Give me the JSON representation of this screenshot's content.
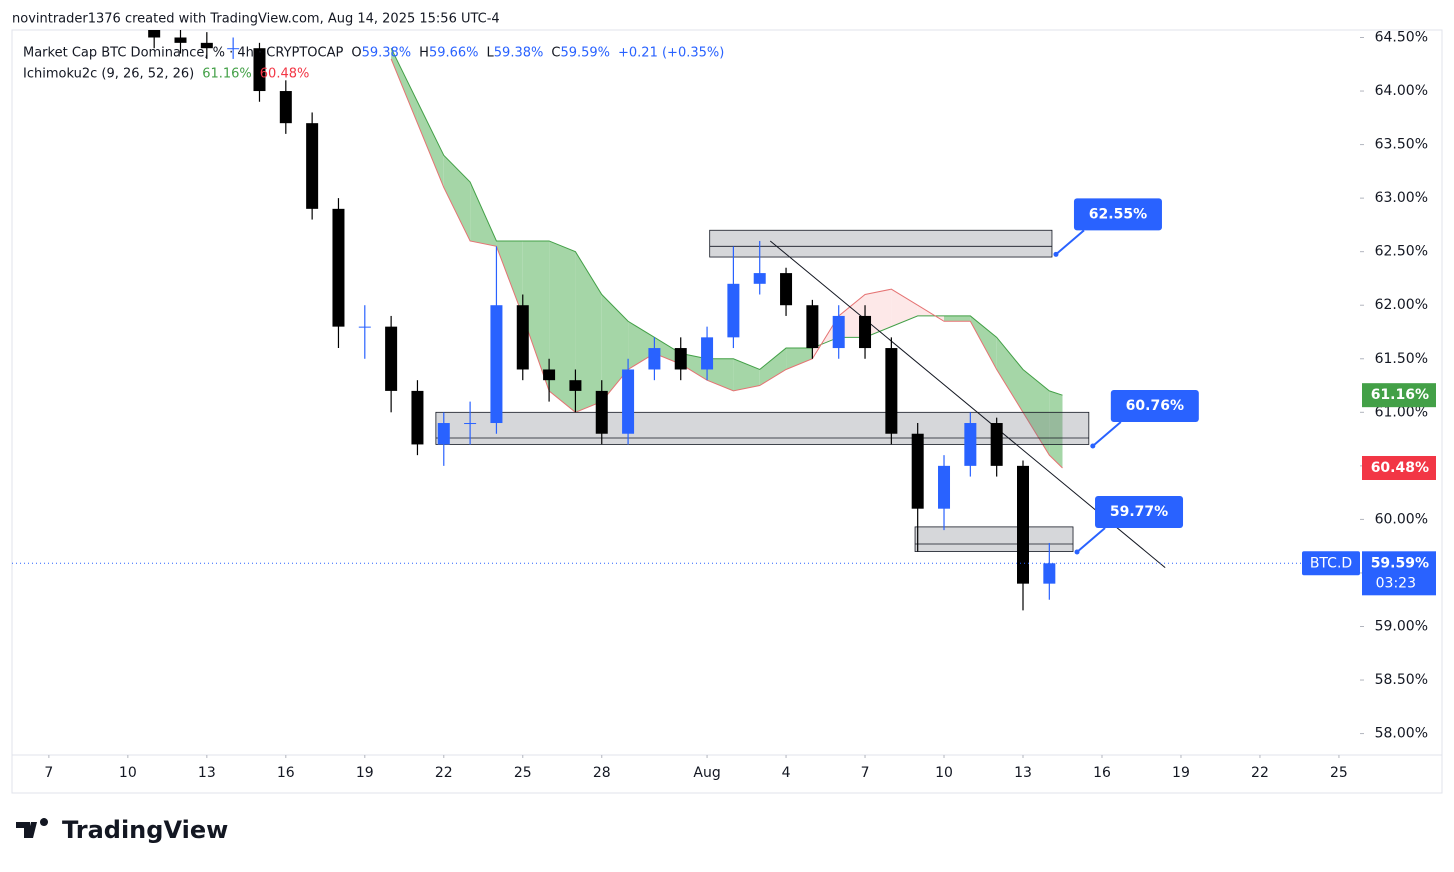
{
  "header": {
    "credit": "novintrader1376 created with TradingView.com, Aug 14, 2025 15:56 UTC-4",
    "logo": "TradingView"
  },
  "chart_data": {
    "type": "candlestick",
    "legend": {
      "symbol": "Market Cap BTC Dominance, % · 4h · CRYPTOCAP",
      "o_key": "O",
      "o": "59.38%",
      "h_key": "H",
      "h": "59.66%",
      "l_key": "L",
      "l": "59.38%",
      "c_key": "C",
      "c": "59.59%",
      "change": "+0.21 (+0.35%)",
      "indicator": "Ichimoku2c (9, 26, 52, 26)",
      "lead_a": "61.16%",
      "lead_b": "60.48%"
    },
    "x": [
      4,
      5,
      6,
      7,
      8,
      9,
      10,
      11,
      12,
      13,
      14,
      15,
      16,
      17,
      18,
      19,
      20,
      21,
      22,
      23,
      24,
      25,
      26,
      27,
      28,
      29,
      30,
      31,
      32,
      33,
      34,
      35,
      36,
      37,
      38
    ],
    "open": [
      64.6,
      64.5,
      64.45,
      64.4,
      64.4,
      64.0,
      63.7,
      62.9,
      61.8,
      61.8,
      61.2,
      60.7,
      60.9,
      60.9,
      62.0,
      61.4,
      61.3,
      61.2,
      60.8,
      61.4,
      61.6,
      61.4,
      61.7,
      62.2,
      62.3,
      62.0,
      61.6,
      61.9,
      61.6,
      60.8,
      60.1,
      60.5,
      60.9,
      60.5,
      59.4
    ],
    "high": [
      64.65,
      64.6,
      64.55,
      64.5,
      64.45,
      64.1,
      63.8,
      63.0,
      62.0,
      61.9,
      61.3,
      61.0,
      61.1,
      62.55,
      62.1,
      61.5,
      61.4,
      61.3,
      61.5,
      61.7,
      61.7,
      61.8,
      62.55,
      62.6,
      62.35,
      62.05,
      62.0,
      62.0,
      61.7,
      60.9,
      60.6,
      61.0,
      60.95,
      60.55,
      59.78
    ],
    "low": [
      64.4,
      64.35,
      64.3,
      64.3,
      63.9,
      63.6,
      62.8,
      61.6,
      61.5,
      61.0,
      60.6,
      60.5,
      60.7,
      60.8,
      61.3,
      61.1,
      61.0,
      60.7,
      60.7,
      61.3,
      61.3,
      61.3,
      61.6,
      62.1,
      61.9,
      61.5,
      61.5,
      61.5,
      60.7,
      59.7,
      59.9,
      60.4,
      60.4,
      59.15,
      59.25
    ],
    "close": [
      64.5,
      64.45,
      64.4,
      64.4,
      64.0,
      63.7,
      62.9,
      61.8,
      61.8,
      61.2,
      60.7,
      60.9,
      60.9,
      62.0,
      61.4,
      61.3,
      61.2,
      60.8,
      61.4,
      61.6,
      61.4,
      61.7,
      62.2,
      62.3,
      62.0,
      61.6,
      61.9,
      61.6,
      60.8,
      60.1,
      60.5,
      60.9,
      60.5,
      59.4,
      59.59
    ],
    "up_color": "#2962ff",
    "down_color": "#000000",
    "cloud": {
      "x": [
        13,
        14,
        15,
        16,
        17,
        18,
        19,
        20,
        21,
        22,
        23,
        24,
        25,
        26,
        27,
        28,
        29,
        30,
        31,
        32,
        33,
        34,
        35,
        36,
        37,
        38,
        38.5
      ],
      "lead_a": [
        64.4,
        63.9,
        63.4,
        63.15,
        62.6,
        62.6,
        62.6,
        62.5,
        62.1,
        61.85,
        61.7,
        61.55,
        61.5,
        61.5,
        61.4,
        61.6,
        61.6,
        61.7,
        61.7,
        61.8,
        61.9,
        61.9,
        61.9,
        61.7,
        61.4,
        61.2,
        61.16
      ],
      "lead_b": [
        64.3,
        63.7,
        63.1,
        62.6,
        62.55,
        61.9,
        61.2,
        61.0,
        61.1,
        61.4,
        61.55,
        61.45,
        61.3,
        61.2,
        61.25,
        61.4,
        61.5,
        61.9,
        62.1,
        62.15,
        62.0,
        61.85,
        61.85,
        61.4,
        61.0,
        60.6,
        60.48
      ],
      "a_color": "#43a047",
      "b_color": "#e57373",
      "a_fill": "#a5d6a7",
      "b_fill": "#fde8e8"
    },
    "zones": [
      {
        "start": 25.1,
        "end": 38.1,
        "top": 62.7,
        "bottom": 62.45,
        "value": 62.55,
        "label": "62.55%"
      },
      {
        "start": 14.7,
        "end": 39.5,
        "top": 61.0,
        "bottom": 60.7,
        "value": 60.76,
        "label": "60.76%"
      },
      {
        "start": 32.9,
        "end": 38.9,
        "top": 59.93,
        "bottom": 59.7,
        "value": 59.77,
        "label": "59.77%"
      }
    ],
    "trendline": {
      "x": [
        27.4,
        42.4
      ],
      "y": [
        62.6,
        59.55
      ]
    },
    "last": {
      "value": 59.59,
      "label": "59.59%",
      "symbol": "BTC.D",
      "countdown": "03:23"
    },
    "xlim": [
      -1.4,
      49.8
    ],
    "xticks": [
      {
        "value": 0,
        "label": "7"
      },
      {
        "value": 3,
        "label": "10"
      },
      {
        "value": 6,
        "label": "13"
      },
      {
        "value": 9,
        "label": "16"
      },
      {
        "value": 12,
        "label": "19"
      },
      {
        "value": 15,
        "label": "22"
      },
      {
        "value": 18,
        "label": "25"
      },
      {
        "value": 21,
        "label": "28"
      },
      {
        "value": 25,
        "label": "Aug"
      },
      {
        "value": 28,
        "label": "4"
      },
      {
        "value": 31,
        "label": "7"
      },
      {
        "value": 34,
        "label": "10"
      },
      {
        "value": 37,
        "label": "13"
      },
      {
        "value": 40,
        "label": "16"
      },
      {
        "value": 43,
        "label": "19"
      },
      {
        "value": 46,
        "label": "22"
      },
      {
        "value": 49,
        "label": "25"
      }
    ],
    "ylim": [
      57.8,
      64.57
    ],
    "yticks": [
      {
        "value": 58,
        "label": "58.00%"
      },
      {
        "value": 58.5,
        "label": "58.50%"
      },
      {
        "value": 59,
        "label": "59.00%"
      },
      {
        "value": 59.5,
        "label": "59.50%"
      },
      {
        "value": 60,
        "label": "60.00%"
      },
      {
        "value": 60.5,
        "label": "60.50%"
      },
      {
        "value": 61,
        "label": "61.00%"
      },
      {
        "value": 61.5,
        "label": "61.50%"
      },
      {
        "value": 62,
        "label": "62.00%"
      },
      {
        "value": 62.5,
        "label": "62.50%"
      },
      {
        "value": 63,
        "label": "63.00%"
      },
      {
        "value": 63.5,
        "label": "63.50%"
      },
      {
        "value": 64,
        "label": "64.00%"
      },
      {
        "value": 64.5,
        "label": "64.50%"
      }
    ]
  }
}
